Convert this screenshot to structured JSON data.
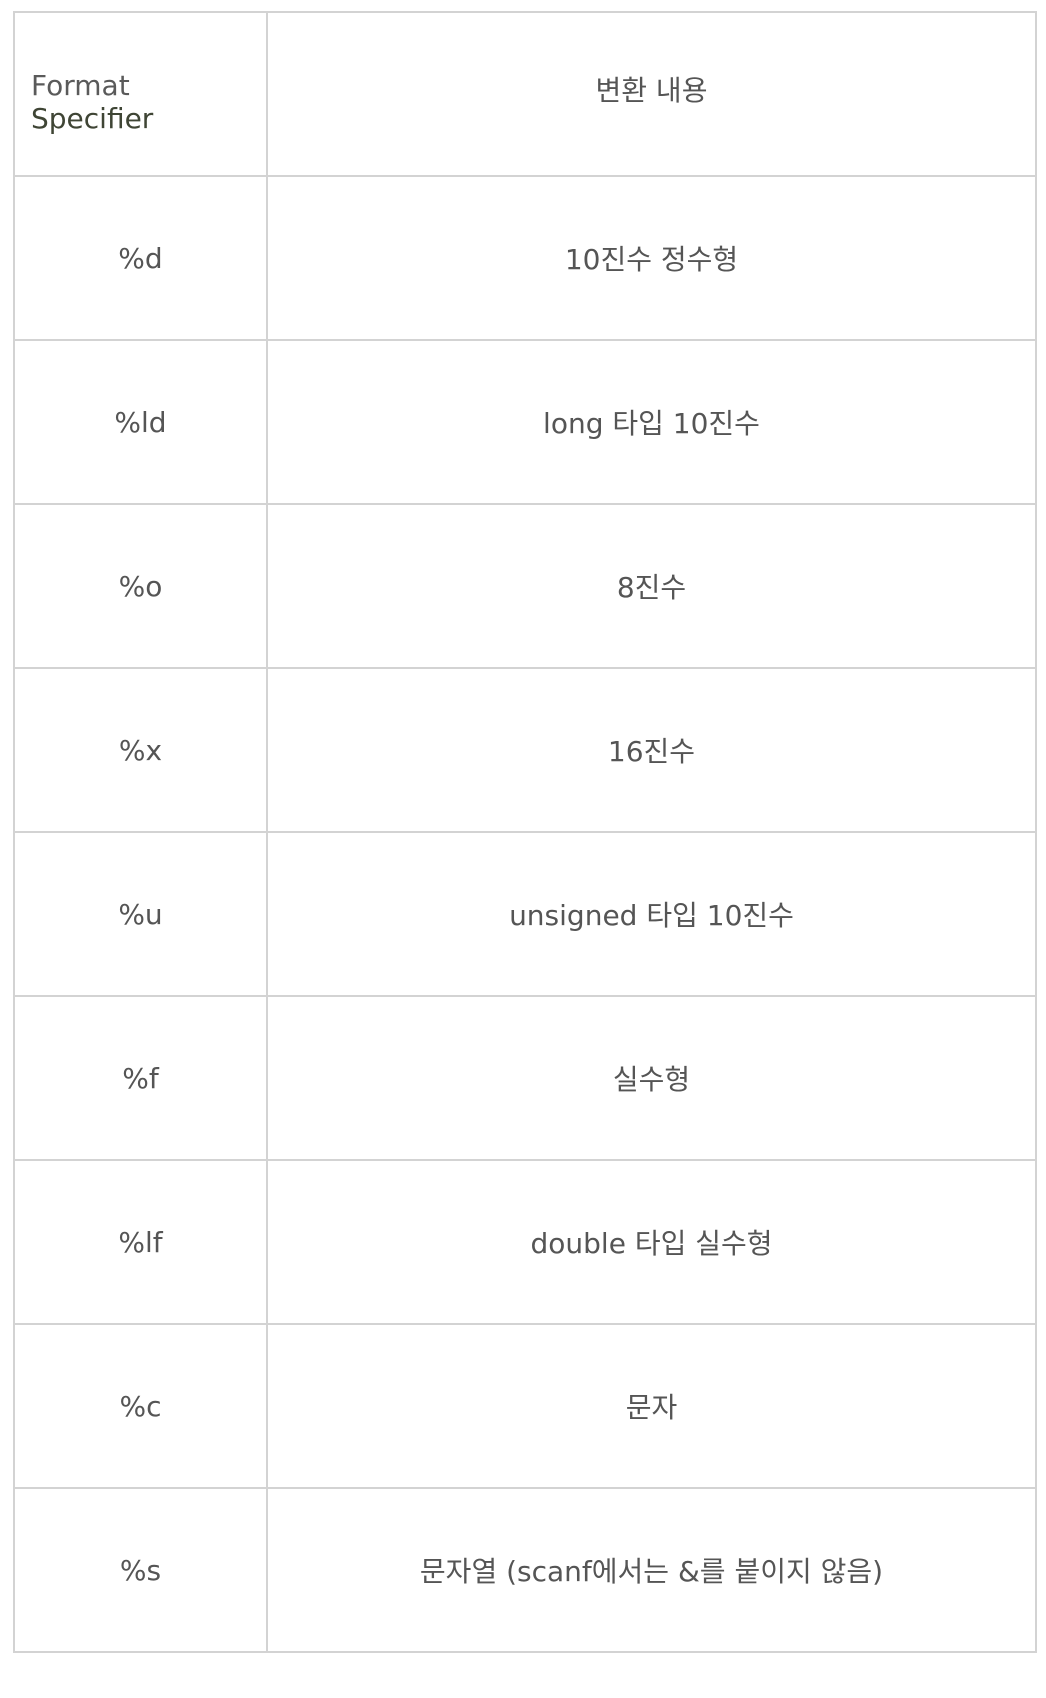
{
  "table": {
    "header": {
      "col1_part1": "Format",
      "col1_part2": "Specifier",
      "col2": "변환 내용"
    },
    "rows": [
      {
        "specifier": "%d",
        "description": "10진수 정수형"
      },
      {
        "specifier": "%ld",
        "description": "long 타입 10진수"
      },
      {
        "specifier": "%o",
        "description": "8진수"
      },
      {
        "specifier": "%x",
        "description": "16진수"
      },
      {
        "specifier": "%u",
        "description": "unsigned 타입 10진수"
      },
      {
        "specifier": "%f",
        "description": "실수형"
      },
      {
        "specifier": "%lf",
        "description": "double 타입 실수형"
      },
      {
        "specifier": "%c",
        "description": "문자"
      },
      {
        "specifier": "%s",
        "description": "문자열 (scanf에서는 &를 붙이지 않음)"
      }
    ]
  },
  "colors": {
    "text": "#555555",
    "specifier_accent": "#3f4535",
    "border": "#d3d3d3",
    "background": "#ffffff"
  }
}
